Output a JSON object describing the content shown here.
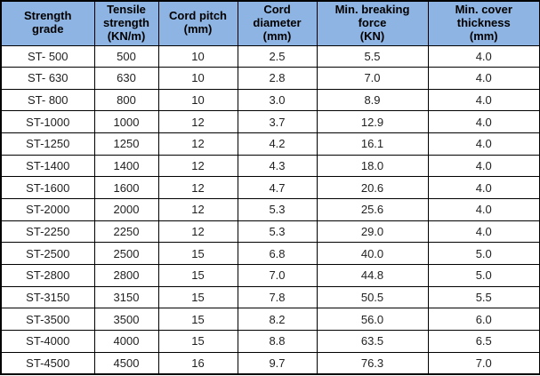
{
  "style": {
    "header_bg": "#8DB4E2",
    "border_color": "#000000",
    "header_text_color": "#000000",
    "cell_text_color": "#1f1f1f"
  },
  "header_display": [
    "Strength\ngrade",
    "Tensile\nstrength\n(KN/m)",
    "Cord pitch\n(mm)",
    "Cord\ndiameter\n(mm)",
    "Min. breaking\nforce\n(KN)",
    "Min. cover\nthickness\n(mm)"
  ],
  "chart_data": {
    "type": "table",
    "title": "",
    "columns": [
      "Strength grade",
      "Tensile strength (KN/m)",
      "Cord pitch (mm)",
      "Cord diameter (mm)",
      "Min. breaking force (KN)",
      "Min. cover thickness (mm)"
    ],
    "rows": [
      [
        "ST- 500",
        "500",
        "10",
        "2.5",
        "5.5",
        "4.0"
      ],
      [
        "ST- 630",
        "630",
        "10",
        "2.8",
        "7.0",
        "4.0"
      ],
      [
        "ST- 800",
        "800",
        "10",
        "3.0",
        "8.9",
        "4.0"
      ],
      [
        "ST-1000",
        "1000",
        "12",
        "3.7",
        "12.9",
        "4.0"
      ],
      [
        "ST-1250",
        "1250",
        "12",
        "4.2",
        "16.1",
        "4.0"
      ],
      [
        "ST-1400",
        "1400",
        "12",
        "4.3",
        "18.0",
        "4.0"
      ],
      [
        "ST-1600",
        "1600",
        "12",
        "4.7",
        "20.6",
        "4.0"
      ],
      [
        "ST-2000",
        "2000",
        "12",
        "5.3",
        "25.6",
        "4.0"
      ],
      [
        "ST-2250",
        "2250",
        "12",
        "5.3",
        "29.0",
        "4.0"
      ],
      [
        "ST-2500",
        "2500",
        "15",
        "6.8",
        "40.0",
        "5.0"
      ],
      [
        "ST-2800",
        "2800",
        "15",
        "7.0",
        "44.8",
        "5.0"
      ],
      [
        "ST-3150",
        "3150",
        "15",
        "7.8",
        "50.5",
        "5.5"
      ],
      [
        "ST-3500",
        "3500",
        "15",
        "8.2",
        "56.0",
        "6.0"
      ],
      [
        "ST-4000",
        "4000",
        "15",
        "8.8",
        "63.5",
        "6.5"
      ],
      [
        "ST-4500",
        "4500",
        "16",
        "9.7",
        "76.3",
        "7.0"
      ]
    ]
  }
}
